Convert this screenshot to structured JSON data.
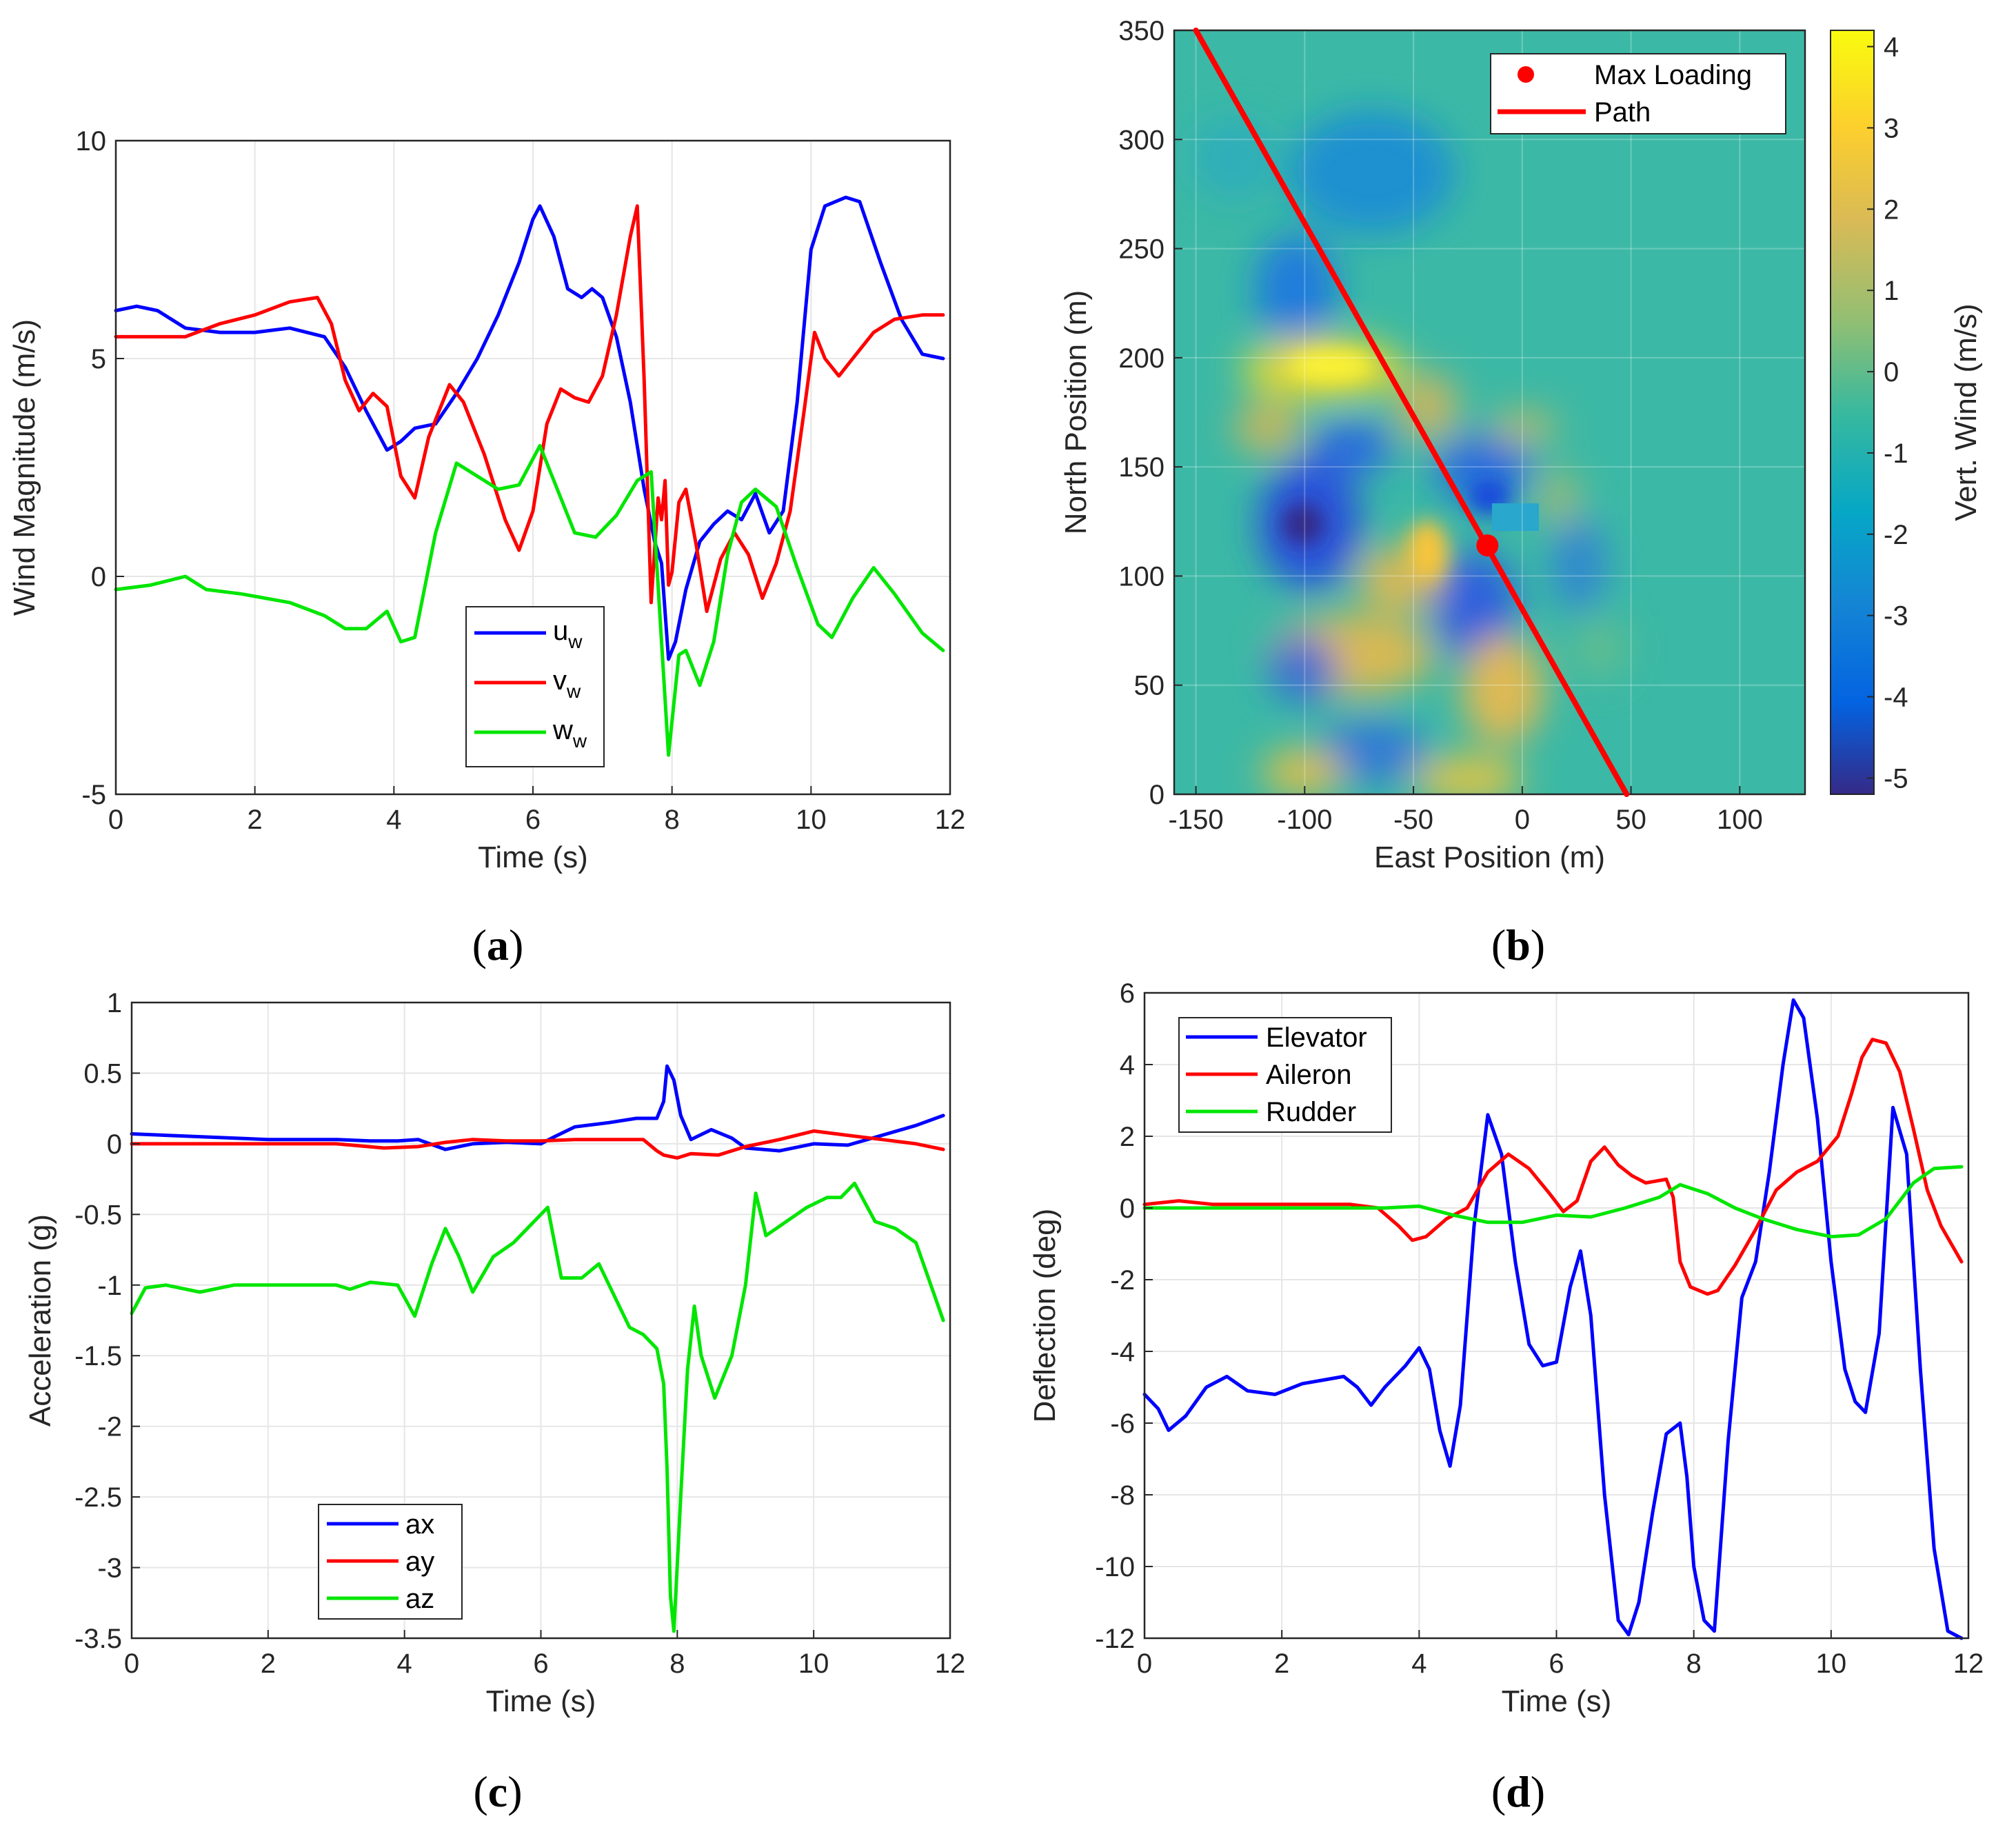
{
  "colors": {
    "blue": "#0000ff",
    "red": "#ff0000",
    "green": "#00e600",
    "grid": "#e6e6e6",
    "axis": "#262626"
  },
  "chart_data": [
    {
      "type": "line",
      "label": "(a)",
      "xlabel": "Time (s)",
      "ylabel": "Wind Magnitude (m/s)",
      "xlim": [
        0,
        12
      ],
      "ylim": [
        -5,
        10
      ],
      "xticks": [
        0,
        2,
        4,
        6,
        8,
        10,
        12
      ],
      "yticks": [
        -5,
        0,
        5,
        10
      ],
      "legend": [
        "u",
        "v",
        "w"
      ],
      "legend_subscript": "w",
      "series": [
        {
          "name": "u_w",
          "color": "blue",
          "x": [
            0,
            0.3,
            0.6,
            1.0,
            1.5,
            2.0,
            2.5,
            3.0,
            3.3,
            3.6,
            3.9,
            4.1,
            4.3,
            4.6,
            4.9,
            5.2,
            5.5,
            5.8,
            6.0,
            6.1,
            6.3,
            6.5,
            6.7,
            6.85,
            7.0,
            7.2,
            7.4,
            7.6,
            7.75,
            7.85,
            7.95,
            8.05,
            8.2,
            8.4,
            8.6,
            8.8,
            9.0,
            9.2,
            9.4,
            9.6,
            9.8,
            10.0,
            10.2,
            10.5,
            10.7,
            11.0,
            11.3,
            11.6,
            11.9
          ],
          "values": [
            6.1,
            6.2,
            6.1,
            5.7,
            5.6,
            5.6,
            5.7,
            5.5,
            4.8,
            3.8,
            2.9,
            3.1,
            3.4,
            3.5,
            4.2,
            5.0,
            6.0,
            7.2,
            8.2,
            8.5,
            7.8,
            6.6,
            6.4,
            6.6,
            6.4,
            5.5,
            4.0,
            2.0,
            0.8,
            0.3,
            -1.9,
            -1.5,
            -0.3,
            0.8,
            1.2,
            1.5,
            1.3,
            1.9,
            1.0,
            1.5,
            4.0,
            7.5,
            8.5,
            8.7,
            8.6,
            7.2,
            5.9,
            5.1,
            5.0
          ]
        },
        {
          "name": "v_w",
          "color": "red",
          "x": [
            0,
            0.5,
            1.0,
            1.5,
            2.0,
            2.5,
            2.9,
            3.1,
            3.3,
            3.5,
            3.7,
            3.9,
            4.1,
            4.3,
            4.5,
            4.8,
            5.0,
            5.3,
            5.6,
            5.8,
            6.0,
            6.2,
            6.4,
            6.6,
            6.8,
            7.0,
            7.2,
            7.4,
            7.5,
            7.6,
            7.7,
            7.8,
            7.85,
            7.9,
            7.95,
            8.0,
            8.1,
            8.2,
            8.35,
            8.5,
            8.7,
            8.9,
            9.1,
            9.3,
            9.5,
            9.7,
            9.9,
            10.05,
            10.2,
            10.4,
            10.6,
            10.9,
            11.2,
            11.6,
            11.9
          ],
          "values": [
            5.5,
            5.5,
            5.5,
            5.8,
            6.0,
            6.3,
            6.4,
            5.8,
            4.5,
            3.8,
            4.2,
            3.9,
            2.3,
            1.8,
            3.2,
            4.4,
            4.0,
            2.8,
            1.3,
            0.6,
            1.5,
            3.5,
            4.3,
            4.1,
            4.0,
            4.6,
            6.0,
            7.8,
            8.5,
            4.5,
            -0.6,
            1.8,
            1.3,
            2.2,
            -0.2,
            0.1,
            1.7,
            2.0,
            0.7,
            -0.8,
            0.4,
            1.0,
            0.5,
            -0.5,
            0.3,
            1.5,
            3.8,
            5.6,
            5.0,
            4.6,
            5.0,
            5.6,
            5.9,
            6.0,
            6.0
          ]
        },
        {
          "name": "w_w",
          "color": "green",
          "x": [
            0,
            0.5,
            1.0,
            1.3,
            1.8,
            2.5,
            3.0,
            3.3,
            3.6,
            3.9,
            4.1,
            4.3,
            4.6,
            4.9,
            5.2,
            5.5,
            5.8,
            6.1,
            6.3,
            6.6,
            6.9,
            7.2,
            7.5,
            7.7,
            7.85,
            7.95,
            8.1,
            8.2,
            8.4,
            8.6,
            8.8,
            9.0,
            9.2,
            9.5,
            9.8,
            10.1,
            10.3,
            10.6,
            10.9,
            11.2,
            11.6,
            11.9
          ],
          "values": [
            -0.3,
            -0.2,
            0.0,
            -0.3,
            -0.4,
            -0.6,
            -0.9,
            -1.2,
            -1.2,
            -0.8,
            -1.5,
            -1.4,
            1.0,
            2.6,
            2.3,
            2.0,
            2.1,
            3.0,
            2.2,
            1.0,
            0.9,
            1.4,
            2.2,
            2.4,
            -1.5,
            -4.1,
            -1.8,
            -1.7,
            -2.5,
            -1.5,
            0.5,
            1.7,
            2.0,
            1.6,
            0.2,
            -1.1,
            -1.4,
            -0.5,
            0.2,
            -0.4,
            -1.3,
            -1.7
          ]
        }
      ]
    },
    {
      "type": "heatmap",
      "label": "(b)",
      "xlabel": "East Position (m)",
      "ylabel": "North Position (m)",
      "colorbar_label": "Vert. Wind (m/s)",
      "xlim": [
        -160,
        130
      ],
      "ylim": [
        0,
        350
      ],
      "clim": [
        -5.2,
        4.2
      ],
      "xticks": [
        -150,
        -100,
        -50,
        0,
        50,
        100
      ],
      "yticks": [
        0,
        50,
        100,
        150,
        200,
        250,
        300,
        350
      ],
      "cticks": [
        -5,
        -4,
        -3,
        -2,
        -1,
        0,
        1,
        2,
        3,
        4
      ],
      "legend": [
        "Max Loading",
        "Path"
      ],
      "path": {
        "x": [
          -150,
          48
        ],
        "y": [
          350,
          0
        ]
      },
      "max_loading": {
        "x": -16,
        "y": 114
      },
      "field_regions": [
        {
          "sign": "positive",
          "x": -90,
          "y": 195
        },
        {
          "sign": "negative",
          "x": -100,
          "y": 120
        },
        {
          "sign": "negative",
          "x": -40,
          "y": 290
        },
        {
          "sign": "positive",
          "x": -20,
          "y": 60
        }
      ]
    },
    {
      "type": "line",
      "label": "(c)",
      "xlabel": "Time (s)",
      "ylabel": "Acceleration (g)",
      "xlim": [
        0,
        12
      ],
      "ylim": [
        -3.5,
        1
      ],
      "xticks": [
        0,
        2,
        4,
        6,
        8,
        10,
        12
      ],
      "yticks": [
        -3.5,
        -3,
        -2.5,
        -2,
        -1.5,
        -1,
        -0.5,
        0,
        0.5,
        1
      ],
      "legend": [
        "ax",
        "ay",
        "az"
      ],
      "series": [
        {
          "name": "ax",
          "color": "blue",
          "x": [
            0,
            1,
            2,
            3,
            3.5,
            3.9,
            4.2,
            4.6,
            5.0,
            5.5,
            6.0,
            6.2,
            6.5,
            7.0,
            7.4,
            7.7,
            7.8,
            7.85,
            7.95,
            8.05,
            8.2,
            8.5,
            8.8,
            9.0,
            9.5,
            10,
            10.5,
            11,
            11.5,
            11.9
          ],
          "values": [
            0.07,
            0.05,
            0.03,
            0.03,
            0.02,
            0.02,
            0.03,
            -0.04,
            0.0,
            0.01,
            0.0,
            0.05,
            0.12,
            0.15,
            0.18,
            0.18,
            0.3,
            0.55,
            0.45,
            0.2,
            0.03,
            0.1,
            0.04,
            -0.03,
            -0.05,
            0.0,
            -0.01,
            0.06,
            0.13,
            0.2
          ]
        },
        {
          "name": "ay",
          "color": "red",
          "x": [
            0,
            1,
            2,
            3,
            3.7,
            4.2,
            4.6,
            5.0,
            5.5,
            6.0,
            6.5,
            7.0,
            7.5,
            7.7,
            7.8,
            8.0,
            8.2,
            8.6,
            9.0,
            9.5,
            10.0,
            10.5,
            11.0,
            11.5,
            11.9
          ],
          "values": [
            0.0,
            0.0,
            0.0,
            0.0,
            -0.03,
            -0.02,
            0.01,
            0.03,
            0.02,
            0.02,
            0.03,
            0.03,
            0.03,
            -0.05,
            -0.08,
            -0.1,
            -0.07,
            -0.08,
            -0.02,
            0.03,
            0.09,
            0.06,
            0.03,
            0.0,
            -0.04
          ]
        },
        {
          "name": "az",
          "color": "green",
          "x": [
            0,
            0.2,
            0.5,
            1.0,
            1.5,
            2.0,
            2.5,
            3.0,
            3.2,
            3.5,
            3.9,
            4.15,
            4.4,
            4.6,
            4.8,
            5.0,
            5.3,
            5.6,
            5.9,
            6.1,
            6.3,
            6.6,
            6.85,
            7.1,
            7.3,
            7.5,
            7.7,
            7.8,
            7.85,
            7.9,
            7.95,
            8.05,
            8.15,
            8.25,
            8.35,
            8.55,
            8.8,
            9.0,
            9.15,
            9.3,
            9.6,
            9.9,
            10.2,
            10.4,
            10.6,
            10.9,
            11.2,
            11.5,
            11.9
          ],
          "values": [
            -1.2,
            -1.02,
            -1.0,
            -1.05,
            -1.0,
            -1.0,
            -1.0,
            -1.0,
            -1.03,
            -0.98,
            -1.0,
            -1.22,
            -0.85,
            -0.6,
            -0.8,
            -1.05,
            -0.8,
            -0.7,
            -0.55,
            -0.45,
            -0.95,
            -0.95,
            -0.85,
            -1.1,
            -1.3,
            -1.35,
            -1.45,
            -1.7,
            -2.3,
            -3.2,
            -3.45,
            -2.5,
            -1.6,
            -1.15,
            -1.5,
            -1.8,
            -1.5,
            -1.0,
            -0.35,
            -0.65,
            -0.55,
            -0.45,
            -0.38,
            -0.38,
            -0.28,
            -0.55,
            -0.6,
            -0.7,
            -1.25
          ]
        }
      ]
    },
    {
      "type": "line",
      "label": "(d)",
      "xlabel": "Time (s)",
      "ylabel": "Deflection (deg)",
      "xlim": [
        0,
        12
      ],
      "ylim": [
        -12,
        6
      ],
      "xticks": [
        0,
        2,
        4,
        6,
        8,
        10,
        12
      ],
      "yticks": [
        -12,
        -10,
        -8,
        -6,
        -4,
        -2,
        0,
        2,
        4,
        6
      ],
      "legend": [
        "Elevator",
        "Aileron",
        "Rudder"
      ],
      "series": [
        {
          "name": "Elevator",
          "color": "blue",
          "x": [
            0,
            0.2,
            0.35,
            0.6,
            0.9,
            1.2,
            1.5,
            1.9,
            2.3,
            2.6,
            2.9,
            3.1,
            3.3,
            3.5,
            3.8,
            4.0,
            4.15,
            4.3,
            4.45,
            4.6,
            4.8,
            5.0,
            5.2,
            5.4,
            5.6,
            5.8,
            6.0,
            6.2,
            6.35,
            6.5,
            6.7,
            6.9,
            7.05,
            7.2,
            7.4,
            7.6,
            7.8,
            7.9,
            8.0,
            8.15,
            8.3,
            8.5,
            8.7,
            8.9,
            9.1,
            9.3,
            9.45,
            9.6,
            9.8,
            10.0,
            10.2,
            10.35,
            10.5,
            10.7,
            10.9,
            11.1,
            11.3,
            11.5,
            11.7,
            11.9
          ],
          "values": [
            -5.2,
            -5.6,
            -6.2,
            -5.8,
            -5.0,
            -4.7,
            -5.1,
            -5.2,
            -4.9,
            -4.8,
            -4.7,
            -5.0,
            -5.5,
            -5.0,
            -4.4,
            -3.9,
            -4.5,
            -6.2,
            -7.2,
            -5.5,
            -0.5,
            2.6,
            1.5,
            -1.5,
            -3.8,
            -4.4,
            -4.3,
            -2.2,
            -1.2,
            -3.0,
            -8.0,
            -11.5,
            -11.9,
            -11.0,
            -8.5,
            -6.3,
            -6.0,
            -7.5,
            -10.0,
            -11.5,
            -11.8,
            -6.5,
            -2.5,
            -1.5,
            1.0,
            4.0,
            5.8,
            5.3,
            2.5,
            -1.5,
            -4.5,
            -5.4,
            -5.7,
            -3.5,
            2.8,
            1.5,
            -4.5,
            -9.5,
            -11.8,
            -12.0
          ]
        },
        {
          "name": "Aileron",
          "color": "red",
          "x": [
            0,
            0.5,
            1.0,
            1.5,
            2.0,
            2.5,
            3.0,
            3.4,
            3.7,
            3.9,
            4.1,
            4.4,
            4.7,
            5.0,
            5.3,
            5.6,
            5.9,
            6.1,
            6.3,
            6.5,
            6.7,
            6.9,
            7.1,
            7.3,
            7.6,
            7.7,
            7.8,
            7.95,
            8.2,
            8.35,
            8.6,
            8.9,
            9.2,
            9.5,
            9.8,
            10.1,
            10.3,
            10.45,
            10.6,
            10.8,
            11.0,
            11.2,
            11.4,
            11.6,
            11.9
          ],
          "values": [
            0.1,
            0.2,
            0.1,
            0.1,
            0.1,
            0.1,
            0.1,
            0.0,
            -0.5,
            -0.9,
            -0.8,
            -0.3,
            0.0,
            1.0,
            1.5,
            1.1,
            0.4,
            -0.1,
            0.2,
            1.3,
            1.7,
            1.2,
            0.9,
            0.7,
            0.8,
            0.3,
            -1.5,
            -2.2,
            -2.4,
            -2.3,
            -1.6,
            -0.6,
            0.5,
            1.0,
            1.3,
            2.0,
            3.2,
            4.2,
            4.7,
            4.6,
            3.8,
            2.2,
            0.5,
            -0.5,
            -1.5
          ]
        },
        {
          "name": "Rudder",
          "color": "green",
          "x": [
            0,
            1,
            2,
            3,
            3.5,
            4.0,
            4.5,
            5.0,
            5.5,
            6.0,
            6.5,
            7.0,
            7.5,
            7.8,
            8.2,
            8.6,
            9.0,
            9.5,
            10.0,
            10.4,
            10.8,
            11.0,
            11.2,
            11.5,
            11.9
          ],
          "values": [
            0.0,
            0.0,
            0.0,
            0.0,
            0.0,
            0.05,
            -0.2,
            -0.4,
            -0.4,
            -0.2,
            -0.25,
            0.0,
            0.3,
            0.65,
            0.4,
            0.0,
            -0.3,
            -0.6,
            -0.8,
            -0.75,
            -0.3,
            0.2,
            0.7,
            1.1,
            1.15
          ]
        }
      ]
    }
  ]
}
